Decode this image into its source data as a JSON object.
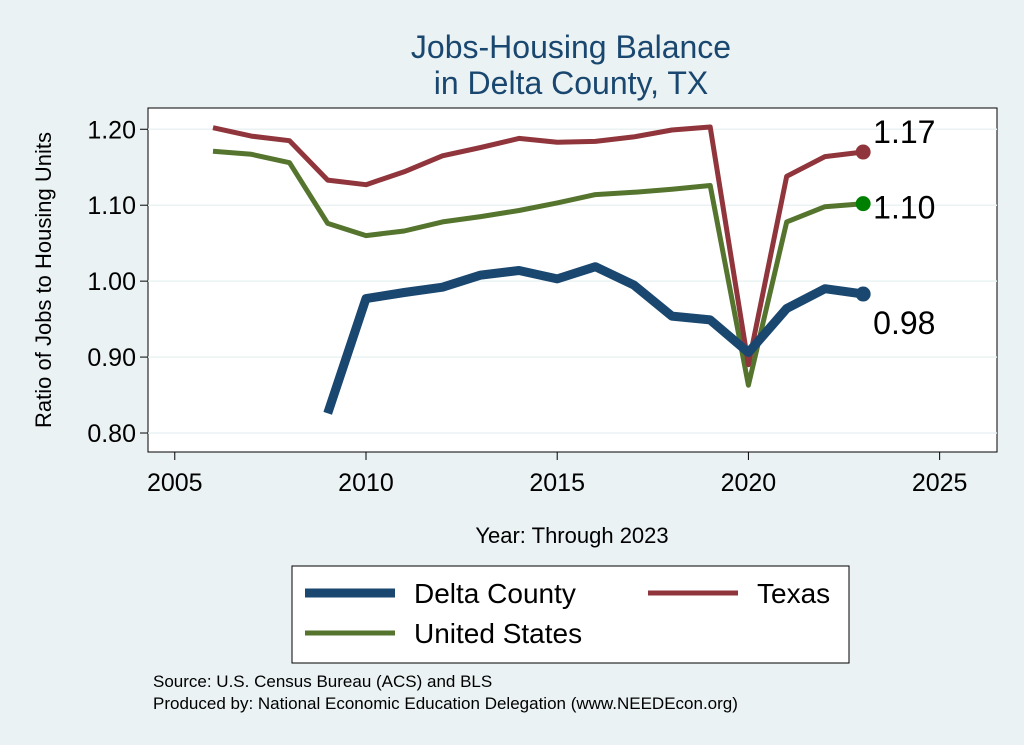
{
  "chart_data": {
    "type": "line",
    "title": "Jobs-Housing Balance",
    "subtitle": "in Delta County, TX",
    "xlabel": "Year: Through 2023",
    "ylabel": "Ratio of Jobs to Housing Units",
    "xlim": [
      2004.3,
      2026.5
    ],
    "ylim": [
      0.775,
      1.228
    ],
    "xticks": [
      2005,
      2010,
      2015,
      2020,
      2025
    ],
    "yticks": [
      0.8,
      0.9,
      1.0,
      1.1,
      1.2
    ],
    "ytick_labels": [
      "0.80",
      "0.90",
      "1.00",
      "1.10",
      "1.20"
    ],
    "grid": true,
    "series": [
      {
        "name": "Delta County",
        "color": "#1a476f",
        "width": "thick",
        "end_label": "0.98",
        "points": [
          [
            2009,
            0.826
          ],
          [
            2010,
            0.977
          ],
          [
            2011,
            0.985
          ],
          [
            2012,
            0.992
          ],
          [
            2013,
            1.008
          ],
          [
            2014,
            1.014
          ],
          [
            2015,
            1.003
          ],
          [
            2016,
            1.019
          ],
          [
            2017,
            0.995
          ],
          [
            2018,
            0.954
          ],
          [
            2019,
            0.949
          ],
          [
            2020,
            0.906
          ],
          [
            2021,
            0.964
          ],
          [
            2022,
            0.99
          ],
          [
            2023,
            0.983
          ]
        ]
      },
      {
        "name": "Texas",
        "color": "#90353b",
        "width": "medium",
        "end_label": "1.17",
        "points": [
          [
            2006,
            1.202
          ],
          [
            2007,
            1.191
          ],
          [
            2008,
            1.185
          ],
          [
            2009,
            1.133
          ],
          [
            2010,
            1.127
          ],
          [
            2011,
            1.144
          ],
          [
            2012,
            1.165
          ],
          [
            2013,
            1.176
          ],
          [
            2014,
            1.188
          ],
          [
            2015,
            1.183
          ],
          [
            2016,
            1.184
          ],
          [
            2017,
            1.19
          ],
          [
            2018,
            1.199
          ],
          [
            2019,
            1.203
          ],
          [
            2020,
            0.89
          ],
          [
            2021,
            1.138
          ],
          [
            2022,
            1.164
          ],
          [
            2023,
            1.17
          ]
        ]
      },
      {
        "name": "United States",
        "color": "#55752f",
        "width": "medium",
        "end_label": "1.10",
        "points": [
          [
            2006,
            1.171
          ],
          [
            2007,
            1.167
          ],
          [
            2008,
            1.156
          ],
          [
            2009,
            1.076
          ],
          [
            2010,
            1.06
          ],
          [
            2011,
            1.066
          ],
          [
            2012,
            1.078
          ],
          [
            2013,
            1.085
          ],
          [
            2014,
            1.093
          ],
          [
            2015,
            1.103
          ],
          [
            2016,
            1.114
          ],
          [
            2017,
            1.117
          ],
          [
            2018,
            1.121
          ],
          [
            2019,
            1.126
          ],
          [
            2020,
            0.863
          ],
          [
            2021,
            1.078
          ],
          [
            2022,
            1.098
          ],
          [
            2023,
            1.102
          ]
        ]
      }
    ],
    "end_marker_colors": [
      "#1a476f",
      "#90353b",
      "#008000"
    ]
  },
  "legend": {
    "items": [
      "Delta County",
      "Texas",
      "United States"
    ]
  },
  "footer": {
    "source": "Source: U.S. Census Bureau (ACS) and BLS",
    "produced_by": "Produced by: National Economic Education Delegation (www.NEEDEcon.org)"
  }
}
